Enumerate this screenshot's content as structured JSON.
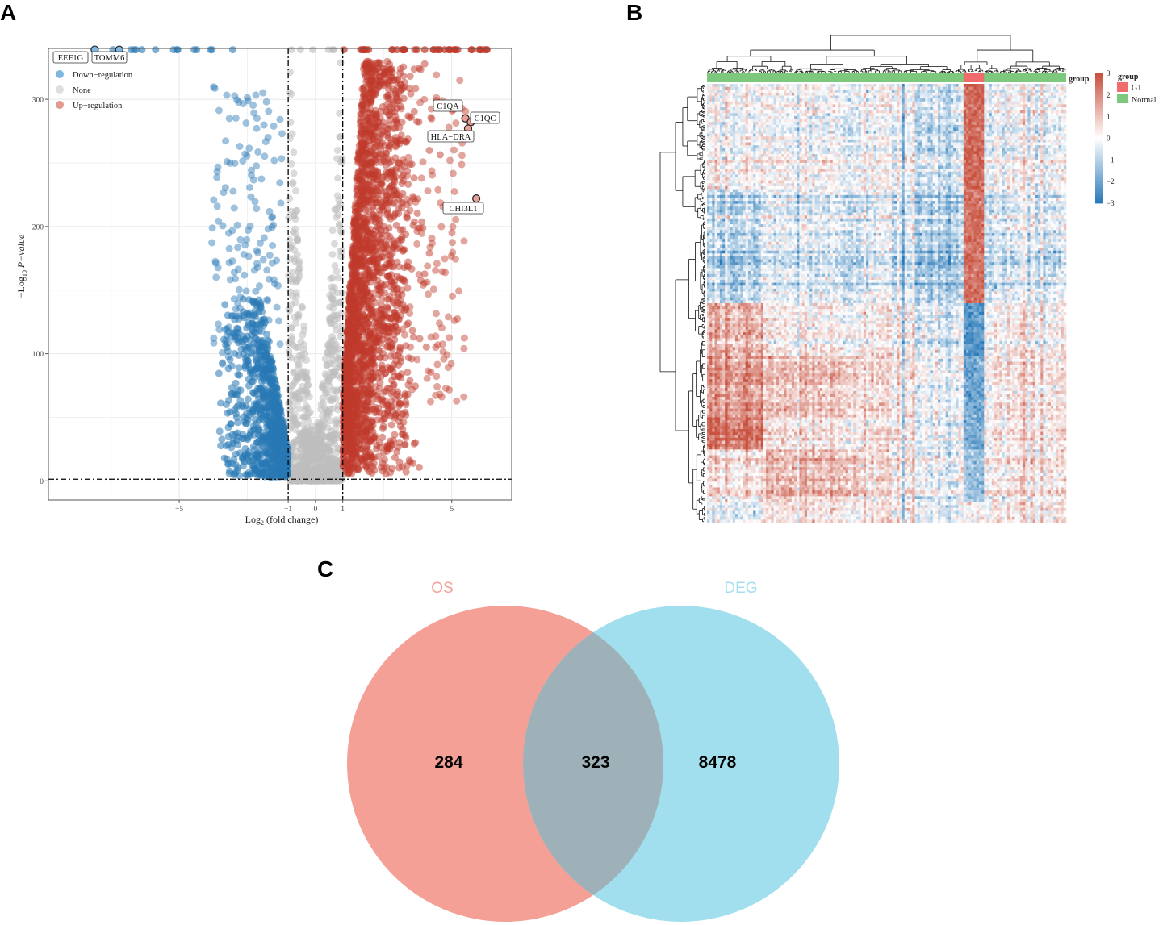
{
  "panels": {
    "a": "A",
    "b": "B",
    "c": "C"
  },
  "colors": {
    "down": "#2878b5",
    "down_light": "#7db8e0",
    "none": "#bdbdbd",
    "up": "#c0392b",
    "up_light": "#e39a8f",
    "heat_high": "#c8513f",
    "heat_mid": "#ffffff",
    "heat_low": "#2a7ab9",
    "group_g1": "#f06c6c",
    "group_normal": "#7cc87c",
    "venn_os": "#f4a096",
    "venn_deg": "#a2dfee",
    "venn_overlap": "#9fb1b8"
  },
  "chart_data": [
    {
      "type": "scatter",
      "panel": "A",
      "title": "",
      "xlabel_main": "Log",
      "xlabel_sub": "2",
      "xlabel_rest": " (fold change)",
      "ylabel_main": "−Log",
      "ylabel_sub": "10",
      "ylabel_rest": " P−value",
      "xlim": [
        -9.8,
        7.2
      ],
      "ylim": [
        -15,
        340
      ],
      "x_ticks": [
        -5,
        -1,
        0,
        1,
        5
      ],
      "x_tick_labels": [
        "−5",
        "−1",
        "0",
        "1",
        "5"
      ],
      "y_ticks": [
        0,
        100,
        200,
        300
      ],
      "y_tick_labels": [
        "0",
        "100",
        "200",
        "300"
      ],
      "thresholds": {
        "logfc": [
          -1,
          1
        ],
        "neglog_p": 1.3
      },
      "legend": [
        {
          "label": "Down−regulation",
          "color_key": "down_light"
        },
        {
          "label": "None",
          "color_key": "none"
        },
        {
          "label": "Up−regulation",
          "color_key": "up_light"
        }
      ],
      "labeled_points": [
        {
          "gene": "EEF1G",
          "x": -8.1,
          "y": 339
        },
        {
          "gene": "TOMM6",
          "x": -7.2,
          "y": 339
        },
        {
          "gene": "C1QA",
          "x": 5.5,
          "y": 285
        },
        {
          "gene": "C1QC",
          "x": 5.7,
          "y": 282
        },
        {
          "gene": "HLA−DRA",
          "x": 5.6,
          "y": 277
        },
        {
          "gene": "CHI3L1",
          "x": 5.9,
          "y": 222
        }
      ]
    },
    {
      "type": "heatmap",
      "panel": "B",
      "color_scale": [
        -3,
        3
      ],
      "scale_ticks": [
        "3",
        "2",
        "1",
        "0",
        "−1",
        "−2",
        "−3"
      ],
      "annotation_label": "group",
      "legend_title": "group",
      "groups": [
        "G1",
        "Normal"
      ]
    },
    {
      "type": "venn",
      "panel": "C",
      "sets": [
        {
          "name": "OS",
          "only": 284
        },
        {
          "name": "DEG",
          "only": 8478
        }
      ],
      "overlap": 323
    }
  ]
}
